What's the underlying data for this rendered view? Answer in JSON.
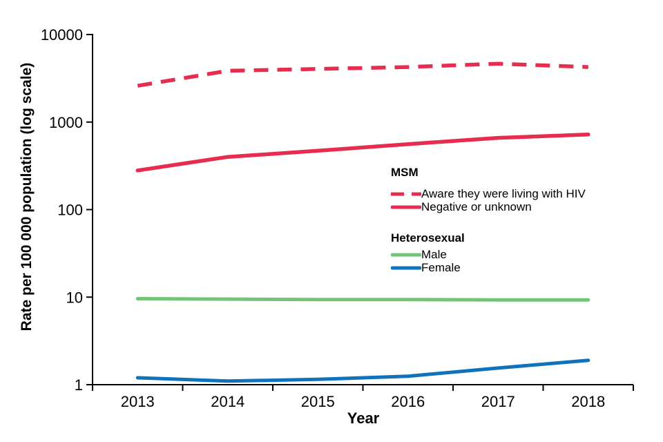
{
  "chart_data": {
    "type": "line",
    "title": "",
    "xlabel": "Year",
    "ylabel": "Rate per 100 000 population (log scale)",
    "x": [
      2013,
      2014,
      2015,
      2016,
      2017,
      2018
    ],
    "y_scale": "log10",
    "ylim": [
      1,
      10000
    ],
    "y_ticks": [
      1,
      10,
      100,
      1000,
      10000
    ],
    "grid": "off",
    "legend_position": "inside-right",
    "series": [
      {
        "id": "msm-aware",
        "group": "MSM",
        "name": "Aware they were living with HIV",
        "color": "#e62d4f",
        "dash": true,
        "width": 5.5,
        "values": [
          2600,
          3850,
          4050,
          4250,
          4650,
          4250
        ]
      },
      {
        "id": "msm-negative",
        "group": "MSM",
        "name": "Negative or unknown",
        "color": "#e62d4f",
        "dash": false,
        "width": 5.5,
        "values": [
          280,
          400,
          470,
          560,
          660,
          720
        ]
      },
      {
        "id": "heterosexual-male",
        "group": "Heterosexual",
        "name": "Male",
        "color": "#74c476",
        "dash": false,
        "width": 5,
        "values": [
          9.6,
          9.5,
          9.4,
          9.4,
          9.3,
          9.3
        ]
      },
      {
        "id": "heterosexual-female",
        "group": "Heterosexual",
        "name": "Female",
        "color": "#1072bb",
        "dash": false,
        "width": 5,
        "values": [
          1.2,
          1.1,
          1.15,
          1.25,
          1.55,
          1.9
        ]
      }
    ],
    "legend": {
      "groups": [
        {
          "header": "MSM",
          "entries": [
            {
              "label": "Aware they were living with HIV"
            },
            {
              "label": "Negative or unknown"
            }
          ]
        },
        {
          "header": "Heterosexual",
          "entries": [
            {
              "label": "Male"
            },
            {
              "label": "Female"
            }
          ]
        }
      ]
    },
    "styles": {
      "axis_color": "#000000",
      "text_color": "#000000",
      "background": "#ffffff"
    }
  }
}
